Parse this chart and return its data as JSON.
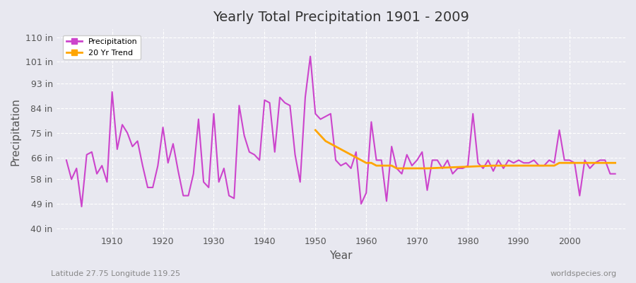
{
  "title": "Yearly Total Precipitation 1901 - 2009",
  "xlabel": "Year",
  "ylabel": "Precipitation",
  "bottom_left_label": "Latitude 27.75 Longitude 119.25",
  "bottom_right_label": "worldspecies.org",
  "yticks": [
    40,
    49,
    58,
    66,
    75,
    84,
    93,
    101,
    110
  ],
  "ytick_labels": [
    "40 in",
    "49 in",
    "58 in",
    "66 in",
    "75 in",
    "84 in",
    "93 in",
    "101 in",
    "110 in"
  ],
  "ylim": [
    38,
    113
  ],
  "xlim": [
    1899,
    2011
  ],
  "precip_color": "#cc44cc",
  "trend_color": "#FFA500",
  "bg_color": "#e8e8f0",
  "plot_bg_color": "#e8e8f0",
  "grid_color": "#ffffff",
  "years": [
    1901,
    1902,
    1903,
    1904,
    1905,
    1906,
    1907,
    1908,
    1909,
    1910,
    1911,
    1912,
    1913,
    1914,
    1915,
    1916,
    1917,
    1918,
    1919,
    1920,
    1921,
    1922,
    1923,
    1924,
    1925,
    1926,
    1927,
    1928,
    1929,
    1930,
    1931,
    1932,
    1933,
    1934,
    1935,
    1936,
    1937,
    1938,
    1939,
    1940,
    1941,
    1942,
    1943,
    1944,
    1945,
    1946,
    1947,
    1948,
    1949,
    1950,
    1951,
    1952,
    1953,
    1954,
    1955,
    1956,
    1957,
    1958,
    1959,
    1960,
    1961,
    1962,
    1963,
    1964,
    1965,
    1966,
    1967,
    1968,
    1969,
    1970,
    1971,
    1972,
    1973,
    1974,
    1975,
    1976,
    1977,
    1978,
    1979,
    1980,
    1981,
    1982,
    1983,
    1984,
    1985,
    1986,
    1987,
    1988,
    1989,
    1990,
    1991,
    1992,
    1993,
    1994,
    1995,
    1996,
    1997,
    1998,
    1999,
    2000,
    2001,
    2002,
    2003,
    2004,
    2005,
    2006,
    2007,
    2008,
    2009
  ],
  "precip": [
    65,
    58,
    62,
    48,
    67,
    68,
    60,
    63,
    57,
    90,
    69,
    78,
    75,
    70,
    72,
    63,
    55,
    55,
    63,
    77,
    64,
    71,
    61,
    52,
    52,
    60,
    80,
    57,
    55,
    82,
    57,
    62,
    52,
    51,
    85,
    74,
    68,
    67,
    65,
    87,
    86,
    68,
    88,
    86,
    85,
    67,
    57,
    88,
    103,
    82,
    80,
    81,
    82,
    65,
    63,
    64,
    62,
    68,
    49,
    53,
    79,
    65,
    65,
    50,
    70,
    62,
    60,
    67,
    63,
    65,
    68,
    54,
    65,
    65,
    62,
    65,
    60,
    62,
    62,
    63,
    82,
    64,
    62,
    65,
    61,
    65,
    62,
    65,
    64,
    65,
    64,
    64,
    65,
    63,
    63,
    65,
    64,
    76,
    65,
    65,
    64,
    52,
    65,
    62,
    64,
    65,
    65,
    60,
    60
  ],
  "trend_years": [
    1950,
    1951,
    1952,
    1953,
    1954,
    1955,
    1956,
    1957,
    1958,
    1959,
    1960,
    1961,
    1962,
    1963,
    1964,
    1965,
    1966,
    1967,
    1968,
    1969,
    1970,
    1971,
    1972,
    1985,
    1986,
    1987,
    1988,
    1989,
    1990,
    1991,
    1992,
    1993,
    1994,
    1995,
    1996,
    1997,
    1998,
    1999,
    2000,
    2001,
    2002,
    2003,
    2004,
    2005,
    2006,
    2007,
    2008,
    2009
  ],
  "trend_values": [
    76,
    74,
    72,
    71,
    70,
    69,
    68,
    67,
    66,
    65,
    64,
    64,
    63,
    63,
    63,
    63,
    62,
    62,
    62,
    62,
    62,
    62,
    62,
    63,
    63,
    63,
    63,
    63,
    63,
    63,
    63,
    63,
    63,
    63,
    63,
    63,
    64,
    64,
    64,
    64,
    64,
    64,
    64,
    64,
    64,
    64,
    64,
    64
  ]
}
